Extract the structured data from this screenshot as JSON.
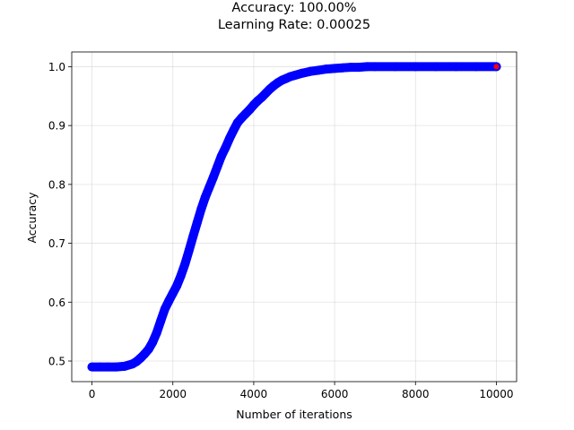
{
  "chart_data": {
    "type": "scatter",
    "title": "Accuracy: 100.00%",
    "subtitle": "Learning Rate: 0.00025",
    "xlabel": "Number of iterations",
    "ylabel": "Accuracy",
    "xlim": [
      -500,
      10500
    ],
    "ylim": [
      0.465,
      1.025
    ],
    "xticks": [
      0,
      2000,
      4000,
      6000,
      8000,
      10000
    ],
    "yticks": [
      0.5,
      0.6,
      0.7,
      0.8,
      0.9,
      1.0
    ],
    "xtick_labels": [
      "0",
      "2000",
      "4000",
      "6000",
      "8000",
      "10000"
    ],
    "ytick_labels": [
      "0.5",
      "0.6",
      "0.7",
      "0.8",
      "0.9",
      "1.0"
    ],
    "grid": true,
    "series": [
      {
        "color": "#0000ff",
        "x": [
          0,
          200,
          400,
          600,
          800,
          1000,
          1100,
          1200,
          1300,
          1400,
          1500,
          1600,
          1700,
          1800,
          1900,
          2000,
          2100,
          2200,
          2300,
          2400,
          2500,
          2600,
          2700,
          2800,
          2900,
          3000,
          3100,
          3200,
          3300,
          3400,
          3500,
          3600,
          3700,
          3800,
          3900,
          4000,
          4100,
          4200,
          4300,
          4400,
          4500,
          4600,
          4700,
          4800,
          4900,
          5000,
          5200,
          5400,
          5600,
          5800,
          6000,
          6200,
          6400,
          6600,
          6800,
          7000,
          7500,
          8000,
          8500,
          9000,
          9500,
          10000
        ],
        "y": [
          0.49,
          0.49,
          0.49,
          0.49,
          0.491,
          0.495,
          0.499,
          0.505,
          0.512,
          0.52,
          0.532,
          0.548,
          0.568,
          0.588,
          0.602,
          0.615,
          0.628,
          0.645,
          0.665,
          0.688,
          0.712,
          0.735,
          0.758,
          0.778,
          0.795,
          0.812,
          0.83,
          0.848,
          0.862,
          0.878,
          0.892,
          0.905,
          0.913,
          0.92,
          0.927,
          0.935,
          0.942,
          0.948,
          0.955,
          0.962,
          0.968,
          0.973,
          0.977,
          0.98,
          0.983,
          0.985,
          0.989,
          0.992,
          0.994,
          0.996,
          0.997,
          0.998,
          0.999,
          0.999,
          1.0,
          1.0,
          1.0,
          1.0,
          1.0,
          1.0,
          1.0,
          1.0
        ]
      }
    ],
    "highlight_point": {
      "x": 10000,
      "y": 1.0,
      "color": "#ff0000"
    }
  }
}
